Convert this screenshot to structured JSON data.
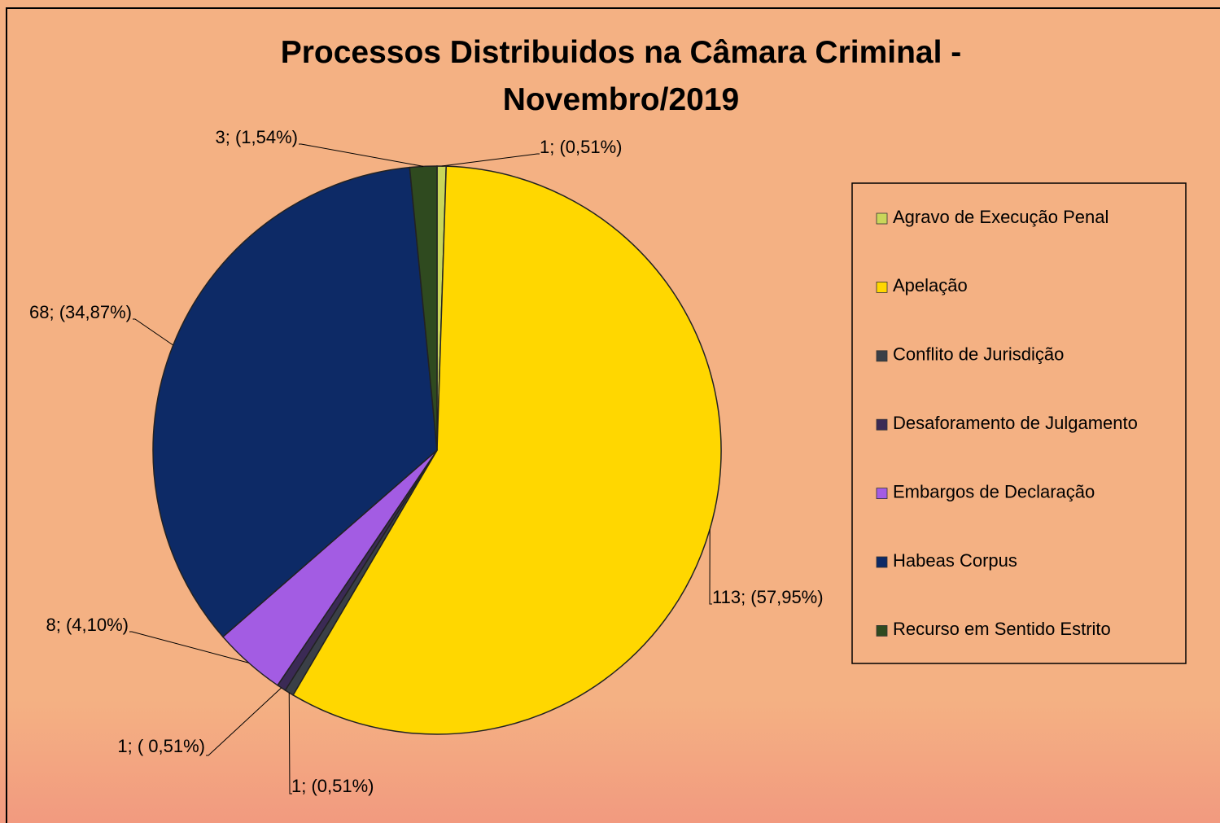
{
  "chart_data": {
    "type": "pie",
    "title": "Processos Distribuidos na Câmara Criminal - Novembro/2019",
    "categories": [
      "Agravo de Execução Penal",
      "Apelação",
      "Conflito de Jurisdição",
      "Desaforamento de Julgamento",
      "Embargos de Declaração",
      "Habeas Corpus",
      "Recurso em Sentido Estrito"
    ],
    "values": [
      1,
      113,
      1,
      1,
      8,
      68,
      3
    ],
    "value_labels": [
      "1; (0,51%)",
      "113; (57,95%)",
      "1; (0,51%)",
      "1; ( 0,51%)",
      "8; (4,10%)",
      "68; (34,87%)",
      "3; (1,54%)"
    ],
    "colors": [
      "#c9d65a",
      "#ffd700",
      "#3a3f47",
      "#3b2a55",
      "#a35ce3",
      "#0d2a66",
      "#2f4a1f"
    ],
    "legend": "right"
  }
}
